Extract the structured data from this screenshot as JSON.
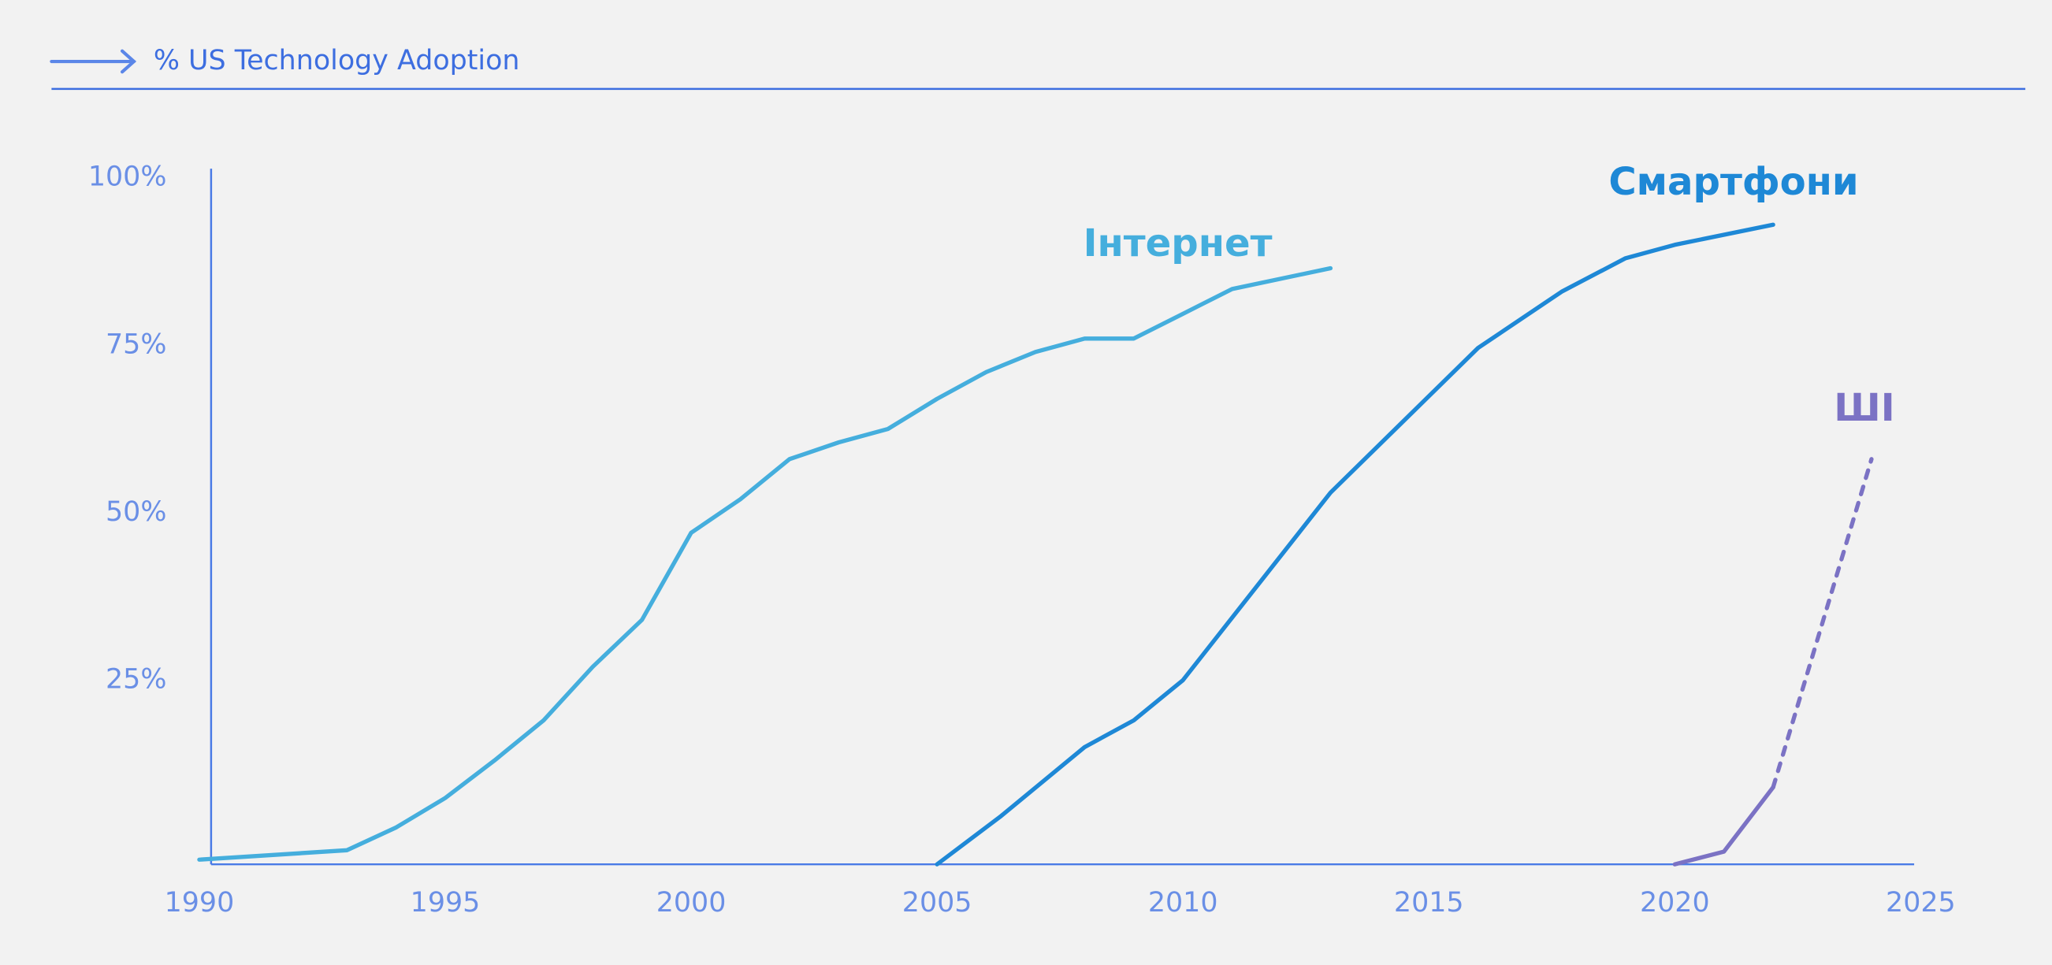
{
  "chart_data": {
    "type": "line",
    "title": "% US Technology Adoption",
    "xlim": [
      1990,
      2025
    ],
    "xticks": [
      1990,
      1995,
      2000,
      2005,
      2010,
      2015,
      2020,
      2025
    ],
    "ylim": [
      -2.5,
      100
    ],
    "yticks": [
      {
        "value": 25,
        "label": "25%"
      },
      {
        "value": 50,
        "label": "50%"
      },
      {
        "value": 75,
        "label": "75%"
      },
      {
        "value": 100,
        "label": "100%"
      }
    ],
    "series": [
      {
        "name": "Інтернет",
        "color": "#45aedd",
        "x": [
          1990,
          1993,
          1994,
          1995,
          1996,
          1997,
          1998,
          1999,
          2000,
          2001,
          2002,
          2003,
          2004,
          2005,
          2006,
          2007,
          2008,
          2009,
          2010,
          2011,
          2013
        ],
        "values": [
          -1.8,
          -0.4,
          3,
          7.4,
          13,
          19,
          27,
          34,
          47,
          52,
          58,
          60.5,
          62.5,
          67,
          71,
          74,
          76,
          76,
          79.7,
          83.4,
          86.5
        ]
      },
      {
        "name": "Смартфони",
        "color": "#1e88d6",
        "x": [
          2005,
          2006.3,
          2008,
          2009,
          2010,
          2013,
          2016,
          2017.7,
          2019,
          2020,
          2022
        ],
        "values": [
          -2.5,
          4.7,
          15,
          19,
          25,
          53,
          74.6,
          83,
          88,
          90,
          93
        ]
      },
      {
        "name": "ШІ",
        "color": "#7b72c4",
        "x": [
          2020,
          2021,
          2022
        ],
        "values": [
          -2.5,
          -0.6,
          9
        ]
      },
      {
        "color": "#7b72c4",
        "dashed": true,
        "x": [
          2022,
          2024
        ],
        "values": [
          9,
          58
        ]
      }
    ]
  }
}
